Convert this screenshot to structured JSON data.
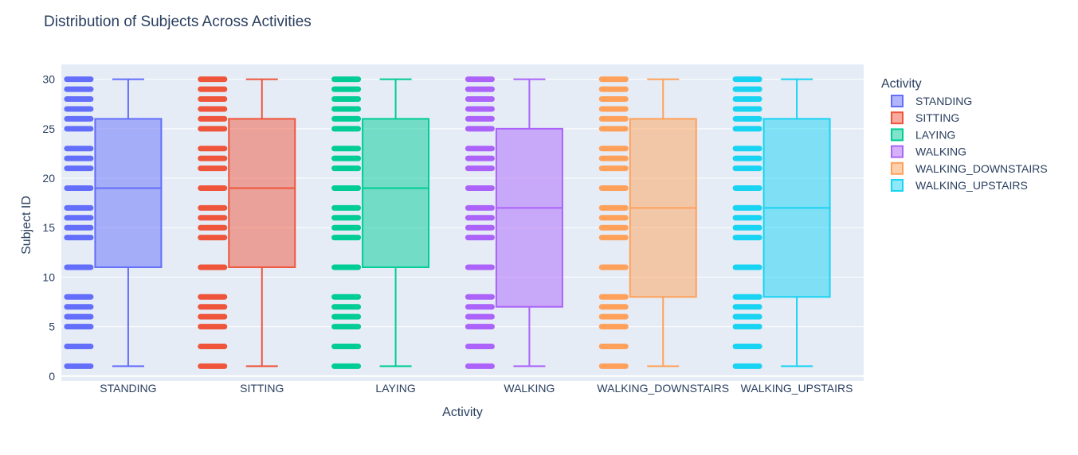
{
  "chart_data": {
    "type": "box",
    "title": "Distribution of Subjects Across Activities",
    "xlabel": "Activity",
    "ylabel": "Subject ID",
    "ylim": [
      -0.5,
      31.5
    ],
    "yticks": [
      0,
      5,
      10,
      15,
      20,
      25,
      30
    ],
    "grid": true,
    "legend_title": "Activity",
    "legend_position": "right",
    "points_shown": "all",
    "series": [
      {
        "name": "STANDING",
        "color": "#636efa",
        "min": 1,
        "q1": 11,
        "median": 19,
        "q3": 26,
        "max": 30,
        "points": [
          1,
          3,
          5,
          6,
          7,
          8,
          11,
          14,
          15,
          16,
          17,
          19,
          21,
          22,
          23,
          25,
          26,
          27,
          28,
          29,
          30
        ]
      },
      {
        "name": "SITTING",
        "color": "#EF553B",
        "min": 1,
        "q1": 11,
        "median": 19,
        "q3": 26,
        "max": 30,
        "points": [
          1,
          3,
          5,
          6,
          7,
          8,
          11,
          14,
          15,
          16,
          17,
          19,
          21,
          22,
          23,
          25,
          26,
          27,
          28,
          29,
          30
        ]
      },
      {
        "name": "LAYING",
        "color": "#00cc96",
        "min": 1,
        "q1": 11,
        "median": 19,
        "q3": 26,
        "max": 30,
        "points": [
          1,
          3,
          5,
          6,
          7,
          8,
          11,
          14,
          15,
          16,
          17,
          19,
          21,
          22,
          23,
          25,
          26,
          27,
          28,
          29,
          30
        ]
      },
      {
        "name": "WALKING",
        "color": "#ab63fa",
        "min": 1,
        "q1": 7,
        "median": 17,
        "q3": 25,
        "max": 30,
        "points": [
          1,
          3,
          5,
          6,
          7,
          8,
          11,
          14,
          15,
          16,
          17,
          19,
          21,
          22,
          23,
          25,
          26,
          27,
          28,
          29,
          30
        ]
      },
      {
        "name": "WALKING_DOWNSTAIRS",
        "color": "#FFA15A",
        "min": 1,
        "q1": 8,
        "median": 17,
        "q3": 26,
        "max": 30,
        "points": [
          1,
          3,
          5,
          6,
          7,
          8,
          11,
          14,
          15,
          16,
          17,
          19,
          21,
          22,
          23,
          25,
          26,
          27,
          28,
          29,
          30
        ]
      },
      {
        "name": "WALKING_UPSTAIRS",
        "color": "#19d3f3",
        "min": 1,
        "q1": 8,
        "median": 17,
        "q3": 26,
        "max": 30,
        "points": [
          1,
          3,
          5,
          6,
          7,
          8,
          11,
          14,
          15,
          16,
          17,
          19,
          21,
          22,
          23,
          25,
          26,
          27,
          28,
          29,
          30
        ]
      }
    ]
  }
}
